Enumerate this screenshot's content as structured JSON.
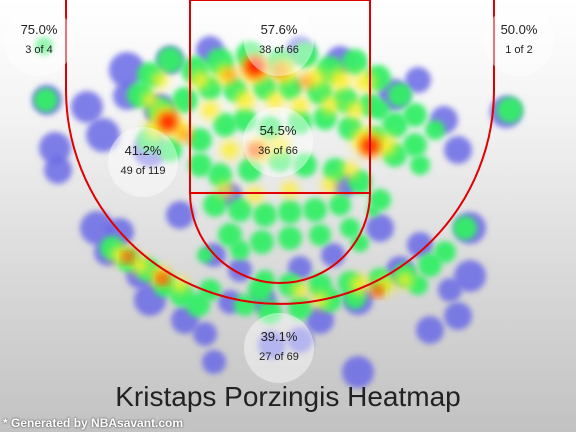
{
  "chart_data": {
    "type": "heatmap",
    "title": "Kristaps Porzingis Heatmap",
    "colors": {
      "court_lines": "#e00000",
      "low": "#6a6ae6",
      "mid": "#33ee66",
      "high": "#ff0000"
    },
    "zones": [
      {
        "id": "left-corner-three",
        "pct": "75.0%",
        "made_of": "3 of 4"
      },
      {
        "id": "top-paint",
        "pct": "57.6%",
        "made_of": "38 of 66"
      },
      {
        "id": "right-corner-three",
        "pct": "50.0%",
        "made_of": "1 of 2"
      },
      {
        "id": "left-mid-range",
        "pct": "41.2%",
        "made_of": "49 of 119"
      },
      {
        "id": "paint-mid",
        "pct": "54.5%",
        "made_of": "36 of 66"
      },
      {
        "id": "top-three",
        "pct": "39.1%",
        "made_of": "27 of 69"
      }
    ]
  },
  "footer": {
    "credit": "* Generated by NBAsavant.com"
  }
}
